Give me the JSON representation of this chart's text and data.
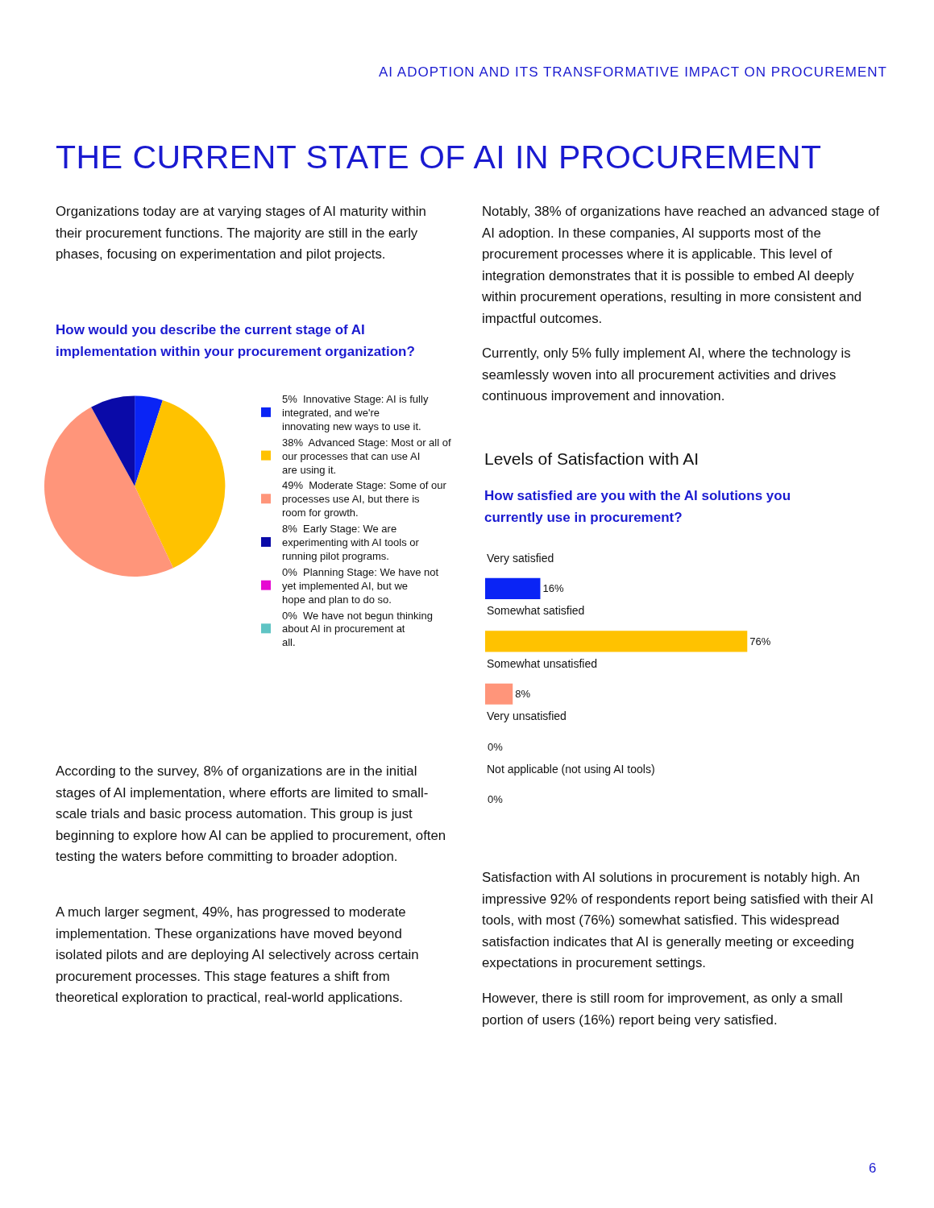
{
  "chart_data": [
    {
      "type": "other",
      "title": "THE CURRENT STATE OF AI IN PROCUREMENT",
      "subtitle": "AI ADOPTION AND ITS TRANSFORMATIVE IMPACT ON PROCUREMENT",
      "annotations": [
        "Organizations today are at varying stages of AI maturity within their procurement functions. The majority are still in the early phases, focusing on experimentation and pilot projects.",
        "According to the survey, 8% of organizations are in the initial stages of AI implementation, where efforts are limited to small-scale trials and basic process automation. This group is just beginning to explore how AI can be applied to procurement, often testing the waters before committing to broader adoption.",
        "A much larger segment, 49%, has progressed to moderate implementation. These organizations have moved beyond isolated pilots and are deploying AI selectively across certain procurement processes. This stage features a shift from theoretical exploration to practical, real-world applications.",
        "Notably, 38% of organizations have reached an advanced stage of AI adoption. In these companies, AI supports most of the procurement processes where it is applicable. This level of integration demonstrates that it is possible to embed AI deeply within procurement operations, resulting in more consistent and impactful outcomes.",
        "Currently, only 5% fully implement AI, where the technology is seamlessly woven into all procurement activities and drives continuous improvement and innovation.",
        "Satisfaction with AI solutions in procurement is notably high. An impressive 92% of respondents report being satisfied with their AI tools, with most (76%) somewhat satisfied. This widespread satisfaction indicates that AI is generally meeting or exceeding expectations in procurement settings.",
        "However, there is still room for improvement, as only a small portion of users (16%) report being very satisfied.",
        "6"
      ]
    },
    {
      "type": "pie",
      "title": "How would you describe the current stage of AI implementation within your procurement organization?",
      "categories": [
        "Innovative Stage: AI is fully integrated, and we're innovating new ways to use it.",
        "Advanced Stage: Most or all of our processes that can use AI are using it.",
        "Moderate Stage: Some of our processes use AI, but there is room for growth.",
        "Early Stage: We are experimenting with AI tools or running pilot programs.",
        "Planning Stage: We have not yet implemented AI, but we hope and plan to do so.",
        "We have not begun thinking about AI in procurement at all."
      ],
      "values": [
        5,
        38,
        49,
        8,
        0,
        0
      ],
      "value_labels": [
        "5%",
        "38%",
        "49%",
        "8%",
        "0%",
        "0%"
      ],
      "colors": [
        "#0a24f5",
        "#ffc200",
        "#ff957a",
        "#0a0aa8",
        "#e60ad2",
        "#5fc4c4"
      ],
      "legend": "right"
    },
    {
      "type": "bar",
      "orientation": "horizontal",
      "title": "Levels of Satisfaction with AI",
      "subtitle": "How satisfied are you with the AI solutions you currently use in procurement?",
      "categories": [
        "Very satisfied",
        "Somewhat satisfied",
        "Somewhat unsatisfied",
        "Very unsatisfied",
        "Not applicable (not using AI tools)"
      ],
      "values": [
        16,
        76,
        8,
        0,
        0
      ],
      "value_labels": [
        "16%",
        "76%",
        "8%",
        "0%",
        "0%"
      ],
      "colors": [
        "#0a24f5",
        "#ffc200",
        "#ff957a",
        "#0a0aa8",
        "#e60ad2"
      ]
    }
  ]
}
